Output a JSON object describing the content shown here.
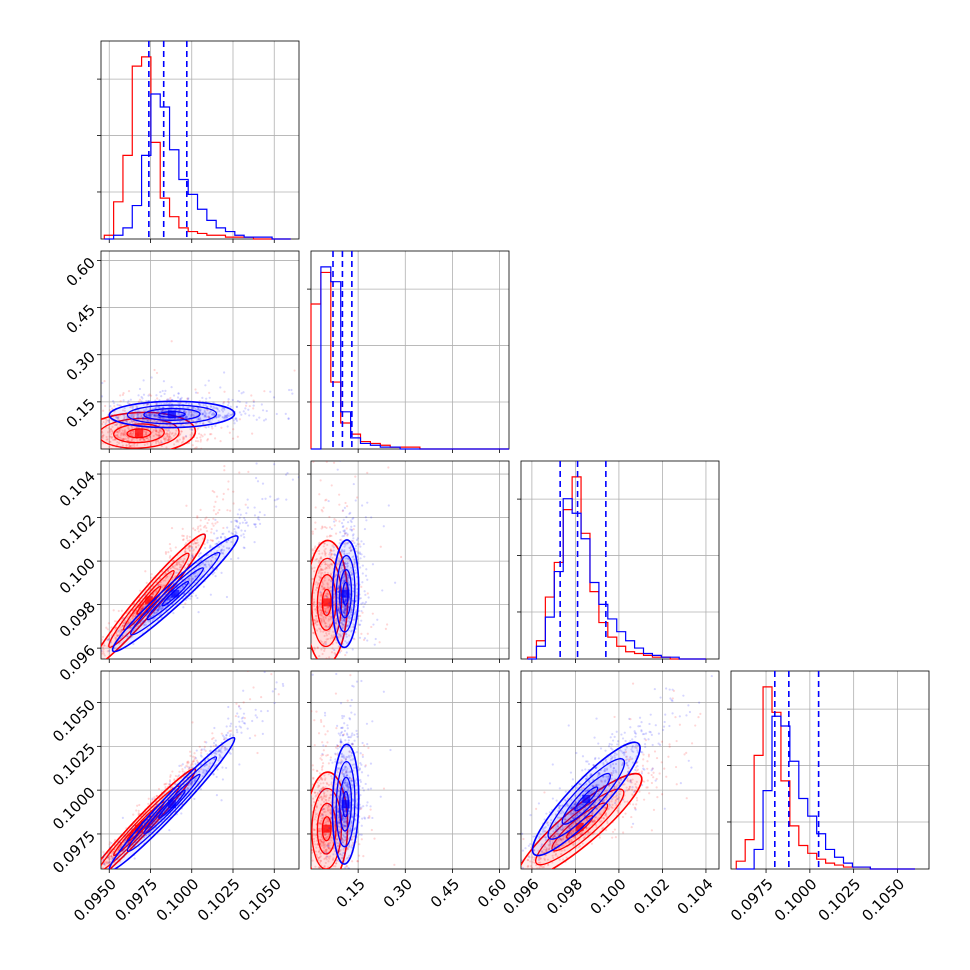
{
  "chart_data": {
    "type": "corner",
    "colors": {
      "red": "#ff0000",
      "blue": "#0000ff"
    },
    "grid": true,
    "dims": 4,
    "axis_ranges": [
      [
        0.0945,
        0.1065
      ],
      [
        0.0,
        0.63
      ],
      [
        0.0955,
        0.1046
      ],
      [
        0.0955,
        0.1068
      ]
    ],
    "x_tick_labels": [
      [
        "0.0950",
        "0.0975",
        "0.1000",
        "0.1025",
        "0.1050"
      ],
      [
        "0.15",
        "0.30",
        "0.45",
        "0.60"
      ],
      [
        "0.096",
        "0.098",
        "0.100",
        "0.102",
        "0.104"
      ],
      [
        "0.0975",
        "0.1000",
        "0.1025",
        "0.1050"
      ]
    ],
    "y_tick_labels": [
      [],
      [
        "0.15",
        "0.30",
        "0.45",
        "0.60"
      ],
      [
        "0.096",
        "0.098",
        "0.100",
        "0.102",
        "0.104"
      ],
      [
        "0.0975",
        "0.1000",
        "0.1025",
        "0.1050"
      ]
    ],
    "quantile_lines": [
      [
        0.0974,
        0.0983,
        0.0997
      ],
      [
        0.07,
        0.1,
        0.13
      ],
      [
        0.0973,
        0.0981,
        0.0994
      ],
      [
        0.098,
        0.0988,
        0.1005
      ]
    ],
    "histograms": [
      {
        "edges_range": [
          0.0947,
          0.106
        ],
        "series": [
          {
            "color": "red",
            "counts": [
              2,
              20,
              45,
              93,
              98,
              52,
              22,
              12,
              6,
              4,
              3,
              2,
              2,
              1,
              1,
              1,
              0,
              0,
              0,
              0
            ]
          },
          {
            "color": "blue",
            "counts": [
              0,
              2,
              6,
              18,
              45,
              78,
              71,
              48,
              32,
              24,
              16,
              10,
              6,
              4,
              2,
              1,
              1,
              1,
              0,
              0
            ]
          }
        ]
      },
      {
        "edges_range": [
          0.0,
          0.63
        ],
        "series": [
          {
            "color": "red",
            "counts": [
              78,
              95,
              36,
              14,
              8,
              4,
              3,
              2,
              1,
              1,
              1,
              0,
              0,
              0,
              0,
              0,
              0,
              0,
              0,
              0
            ]
          },
          {
            "color": "blue",
            "counts": [
              0,
              98,
              90,
              20,
              6,
              3,
              2,
              1,
              1,
              0,
              0,
              0,
              0,
              0,
              0,
              0,
              0,
              0,
              0,
              0
            ]
          }
        ]
      },
      {
        "edges_range": [
          0.0958,
          0.104
        ],
        "series": [
          {
            "color": "red",
            "counts": [
              1,
              10,
              34,
              53,
              82,
              100,
              69,
              37,
              20,
              12,
              7,
              4,
              3,
              2,
              1,
              1,
              0,
              0,
              0,
              0
            ]
          },
          {
            "color": "blue",
            "counts": [
              0,
              7,
              23,
              48,
              88,
              80,
              66,
              42,
              30,
              22,
              15,
              10,
              6,
              3,
              2,
              1,
              1,
              0,
              0,
              0
            ]
          }
        ]
      },
      {
        "edges_range": [
          0.0958,
          0.106
        ],
        "series": [
          {
            "color": "red",
            "counts": [
              4,
              15,
              58,
              93,
              80,
              45,
              22,
              12,
              8,
              5,
              3,
              2,
              1,
              1,
              1,
              0,
              0,
              0,
              0,
              0
            ]
          },
          {
            "color": "blue",
            "counts": [
              0,
              0,
              10,
              40,
              78,
              73,
              55,
              36,
              27,
              18,
              10,
              6,
              3,
              1,
              1,
              0,
              0,
              0,
              0,
              0
            ]
          }
        ]
      }
    ],
    "pairs": [
      {
        "row": 1,
        "col": 0,
        "red": {
          "mean": [
            0.0968,
            0.05
          ],
          "spread": [
            0.0018,
            0.035
          ],
          "corr": 0.1
        },
        "blue": {
          "mean": [
            0.0988,
            0.11
          ],
          "spread": [
            0.002,
            0.022
          ],
          "corr": 0.05
        }
      },
      {
        "row": 2,
        "col": 0,
        "red": {
          "mean": [
            0.0974,
            0.0982
          ],
          "spread": [
            0.0018,
            0.0016
          ],
          "corr": 0.97
        },
        "blue": {
          "mean": [
            0.099,
            0.0985
          ],
          "spread": [
            0.002,
            0.0014
          ],
          "corr": 0.97
        }
      },
      {
        "row": 2,
        "col": 1,
        "red": {
          "mean": [
            0.05,
            0.0981
          ],
          "spread": [
            0.035,
            0.0015
          ],
          "corr": 0.05
        },
        "blue": {
          "mean": [
            0.11,
            0.0985
          ],
          "spread": [
            0.022,
            0.0013
          ],
          "corr": 0.1
        }
      },
      {
        "row": 3,
        "col": 0,
        "red": {
          "mean": [
            0.0968,
            0.0978
          ],
          "spread": [
            0.0018,
            0.0018
          ],
          "corr": 0.98
        },
        "blue": {
          "mean": [
            0.0988,
            0.0992
          ],
          "spread": [
            0.002,
            0.002
          ],
          "corr": 0.98
        }
      },
      {
        "row": 3,
        "col": 1,
        "red": {
          "mean": [
            0.05,
            0.0978
          ],
          "spread": [
            0.035,
            0.0017
          ],
          "corr": 0.05
        },
        "blue": {
          "mean": [
            0.11,
            0.0992
          ],
          "spread": [
            0.022,
            0.0018
          ],
          "corr": 0.1
        }
      },
      {
        "row": 3,
        "col": 2,
        "red": {
          "mean": [
            0.0982,
            0.0979
          ],
          "spread": [
            0.0015,
            0.0016
          ],
          "corr": 0.9
        },
        "blue": {
          "mean": [
            0.0985,
            0.0995
          ],
          "spread": [
            0.0013,
            0.0017
          ],
          "corr": 0.9
        }
      }
    ]
  }
}
